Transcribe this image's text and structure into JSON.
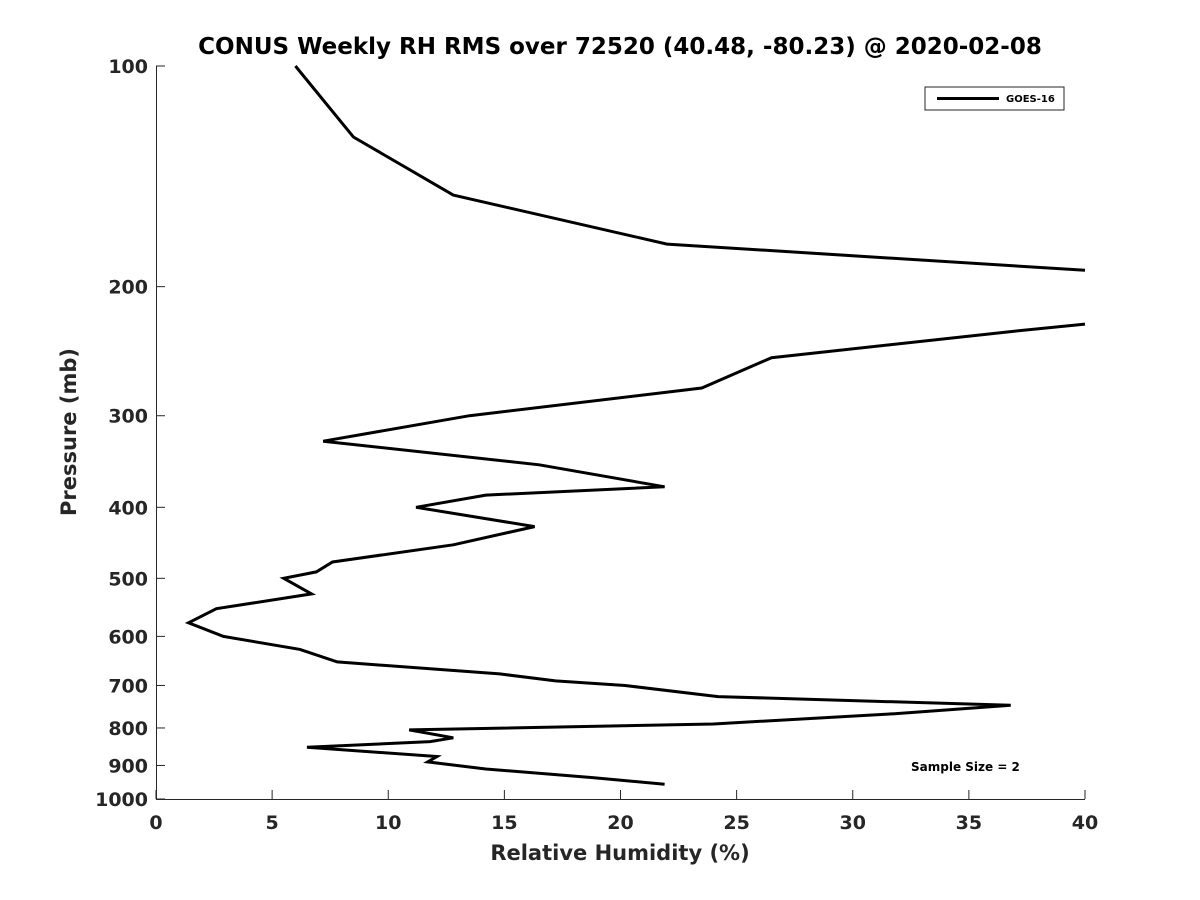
{
  "chart_data": {
    "type": "line",
    "title": "CONUS Weekly RH RMS over 72520 (40.48, -80.23) @ 2020-02-08",
    "xlabel": "Relative Humidity (%)",
    "ylabel": "Pressure (mb)",
    "xlim": [
      0,
      40
    ],
    "ylim": [
      100,
      1000
    ],
    "y_scale": "log",
    "y_reversed": true,
    "x_ticks": [
      "0",
      "5",
      "10",
      "15",
      "20",
      "25",
      "30",
      "35",
      "40"
    ],
    "y_ticks": [
      "100",
      "200",
      "300",
      "400",
      "500",
      "600",
      "700",
      "800",
      "900",
      "1000"
    ],
    "grid": false,
    "legend_position": "top-right",
    "annotation": "Sample Size = 2",
    "series": [
      {
        "name": "GOES-16",
        "color": "#000000",
        "points": [
          {
            "x": 6.0,
            "y": 100
          },
          {
            "x": 8.5,
            "y": 125
          },
          {
            "x": 12.8,
            "y": 150
          },
          {
            "x": 22.0,
            "y": 175
          },
          {
            "x": 40.0,
            "y": 190
          },
          {
            "x": null,
            "y": 200
          },
          {
            "x": 40.0,
            "y": 225
          },
          {
            "x": 37.0,
            "y": 230
          },
          {
            "x": 26.5,
            "y": 250
          },
          {
            "x": 23.5,
            "y": 275
          },
          {
            "x": 13.5,
            "y": 300
          },
          {
            "x": 7.2,
            "y": 325
          },
          {
            "x": 16.5,
            "y": 350
          },
          {
            "x": 21.9,
            "y": 375
          },
          {
            "x": 14.2,
            "y": 385
          },
          {
            "x": 11.2,
            "y": 400
          },
          {
            "x": 16.3,
            "y": 425
          },
          {
            "x": 12.8,
            "y": 450
          },
          {
            "x": 7.6,
            "y": 475
          },
          {
            "x": 6.9,
            "y": 490
          },
          {
            "x": 5.5,
            "y": 500
          },
          {
            "x": 6.7,
            "y": 525
          },
          {
            "x": 2.6,
            "y": 550
          },
          {
            "x": 1.4,
            "y": 575
          },
          {
            "x": 2.9,
            "y": 600
          },
          {
            "x": 6.2,
            "y": 625
          },
          {
            "x": 7.8,
            "y": 650
          },
          {
            "x": 14.8,
            "y": 675
          },
          {
            "x": 17.2,
            "y": 690
          },
          {
            "x": 20.2,
            "y": 700
          },
          {
            "x": 24.2,
            "y": 725
          },
          {
            "x": 36.8,
            "y": 745
          },
          {
            "x": 31.8,
            "y": 765
          },
          {
            "x": 24.0,
            "y": 790
          },
          {
            "x": 10.9,
            "y": 805
          },
          {
            "x": 12.8,
            "y": 825
          },
          {
            "x": 11.8,
            "y": 835
          },
          {
            "x": 6.5,
            "y": 850
          },
          {
            "x": 12.1,
            "y": 875
          },
          {
            "x": 11.7,
            "y": 890
          },
          {
            "x": 14.2,
            "y": 910
          },
          {
            "x": 18.8,
            "y": 935
          },
          {
            "x": 21.9,
            "y": 955
          }
        ]
      }
    ]
  }
}
